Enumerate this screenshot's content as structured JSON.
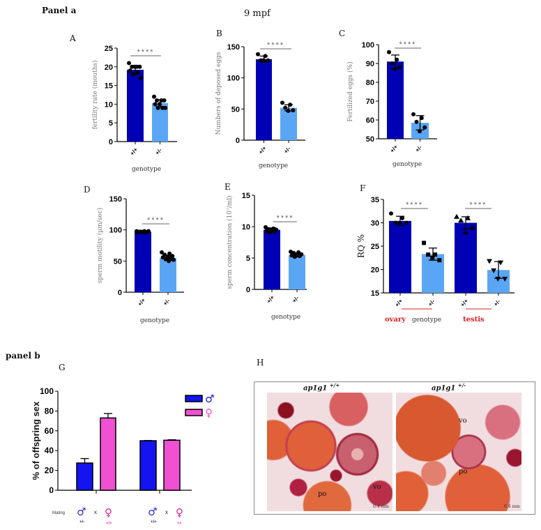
{
  "panel_a": {
    "title": "Panel a",
    "subtitle": "9 mpf"
  },
  "panel_b": {
    "title": "panel b"
  },
  "letters": {
    "A": "A",
    "B": "B",
    "C": "C",
    "D": "D",
    "E": "E",
    "F": "F",
    "G": "G",
    "H": "H"
  },
  "colors": {
    "wt": "#0000b4",
    "het": "#5aa6f5",
    "male": "#1414f0",
    "female": "#f050d2",
    "sig": "#777777",
    "red": "#e02020"
  },
  "chart_data": [
    {
      "id": "A",
      "type": "bar",
      "title": "",
      "xlabel": "genotype",
      "ylabel": "fertility rate (mouths)",
      "ylim": [
        0,
        25
      ],
      "yticks": [
        0,
        5,
        10,
        15,
        20,
        25
      ],
      "significance": [
        "****"
      ],
      "categories": [
        "+/+",
        "+/-"
      ],
      "bars": [
        {
          "mean": 19.2,
          "sd": 1.2,
          "points": [
            21,
            20,
            20,
            20,
            20,
            19,
            18.5,
            18,
            17
          ]
        },
        {
          "mean": 10.3,
          "sd": 0.9,
          "points": [
            12,
            11,
            11,
            11,
            10,
            10,
            9,
            9,
            9
          ]
        }
      ]
    },
    {
      "id": "B",
      "type": "bar",
      "xlabel": "genotype",
      "ylabel": "Numbers of deposed eggs",
      "ylim": [
        0,
        150
      ],
      "yticks": [
        0,
        50,
        100,
        150
      ],
      "significance": [
        "****"
      ],
      "categories": [
        "+/+",
        "+/-"
      ],
      "bars": [
        {
          "mean": 130,
          "sd": 5,
          "points": [
            138,
            135,
            128,
            128,
            128
          ]
        },
        {
          "mean": 52,
          "sd": 5,
          "points": [
            60,
            57,
            52,
            48,
            47
          ]
        }
      ]
    },
    {
      "id": "C",
      "type": "bar",
      "xlabel": "genotype",
      "ylabel": "Fertilized eggs (%)",
      "ylim": [
        50,
        100
      ],
      "yticks": [
        50,
        60,
        70,
        80,
        90,
        100
      ],
      "significance": [
        "****"
      ],
      "categories": [
        "+/+",
        "+/-"
      ],
      "bars": [
        {
          "mean": 91,
          "sd": 3.5,
          "points": [
            96,
            92,
            90,
            88,
            87
          ]
        },
        {
          "mean": 58.5,
          "sd": 3.8,
          "points": [
            63,
            61,
            59,
            56,
            54
          ]
        }
      ]
    },
    {
      "id": "D",
      "type": "bar",
      "xlabel": "genotype",
      "ylabel": "sperm motility (µm/sec)",
      "ylim": [
        0,
        150
      ],
      "yticks": [
        0,
        50,
        100,
        150
      ],
      "significance": [
        "****"
      ],
      "categories": [
        "+/+",
        "+/-"
      ],
      "bars": [
        {
          "mean": 97,
          "sd": 1,
          "points": [
            98,
            98,
            97,
            97,
            97,
            96,
            96,
            97,
            98,
            96
          ]
        },
        {
          "mean": 55,
          "sd": 4,
          "points": [
            64,
            62,
            60,
            58,
            57,
            56,
            55,
            53,
            52,
            50
          ]
        }
      ]
    },
    {
      "id": "E",
      "type": "bar",
      "xlabel": "genotype",
      "ylabel": "sperm concentration (10⁷/ml)",
      "ylim": [
        0,
        15
      ],
      "yticks": [
        0,
        5,
        10,
        15
      ],
      "significance": [
        "****"
      ],
      "categories": [
        "+/+",
        "+/-"
      ],
      "bars": [
        {
          "mean": 9.5,
          "sd": 0.3,
          "points": [
            9.9,
            9.7,
            9.6,
            9.5,
            9.4,
            9.3,
            9.2,
            9.1
          ]
        },
        {
          "mean": 5.5,
          "sd": 0.3,
          "points": [
            6,
            5.9,
            5.8,
            5.6,
            5.5,
            5.4,
            5.3,
            5.2
          ]
        }
      ]
    },
    {
      "id": "F",
      "type": "bar",
      "xlabel": "genotype",
      "ylabel": "RQ %",
      "ylim": [
        15,
        35
      ],
      "yticks": [
        15,
        20,
        25,
        30,
        35
      ],
      "significance": [
        "****",
        "****"
      ],
      "categories": [
        "+/+",
        "+/-",
        "+/+",
        "+/-"
      ],
      "groups": [
        "ovary",
        "testis"
      ],
      "bars": [
        {
          "mean": 30.4,
          "sd": 1,
          "marker": "circle",
          "points": [
            32,
            31,
            30,
            30,
            30
          ]
        },
        {
          "mean": 23.3,
          "sd": 1.3,
          "marker": "square",
          "points": [
            25.7,
            23.2,
            23.2,
            22,
            22.5
          ]
        },
        {
          "mean": 30,
          "sd": 1.3,
          "marker": "triangle",
          "points": [
            31.3,
            31,
            30.5,
            29,
            28
          ]
        },
        {
          "mean": 19.9,
          "sd": 1.8,
          "marker": "triangle-down",
          "points": [
            21.8,
            21.5,
            19.8,
            18,
            18
          ]
        }
      ]
    },
    {
      "id": "G",
      "type": "bar",
      "ylabel": "% of offspring sex",
      "ylim": [
        0,
        100
      ],
      "yticks": [
        0,
        20,
        40,
        60,
        80,
        100
      ],
      "legend": [
        {
          "name": "♂",
          "color": "#1414f0"
        },
        {
          "name": "♀",
          "color": "#f050d2"
        }
      ],
      "legend_position": "top-right",
      "mating_label": "Mating",
      "cross": "x",
      "crosses": [
        {
          "male": "+/-",
          "female": "+/+"
        },
        {
          "male": "+/+",
          "female": "+/-"
        }
      ],
      "bars": [
        {
          "series": "♂",
          "mean": 27.5,
          "sd": 4.5
        },
        {
          "series": "♀",
          "mean": 73,
          "sd": 4.5
        },
        {
          "series": "♂",
          "mean": 50,
          "sd": 0.3
        },
        {
          "series": "♀",
          "mean": 50.5,
          "sd": 0.5
        }
      ]
    }
  ],
  "histology": {
    "left": {
      "title": "ap1g1",
      "sup": "+/+",
      "labels": [
        "po",
        "vo"
      ],
      "scale": "0.4 mm"
    },
    "right": {
      "title": "ap1g1",
      "sup": "+/-",
      "labels": [
        "vo",
        "po"
      ],
      "scale": "0.4 mm"
    }
  }
}
